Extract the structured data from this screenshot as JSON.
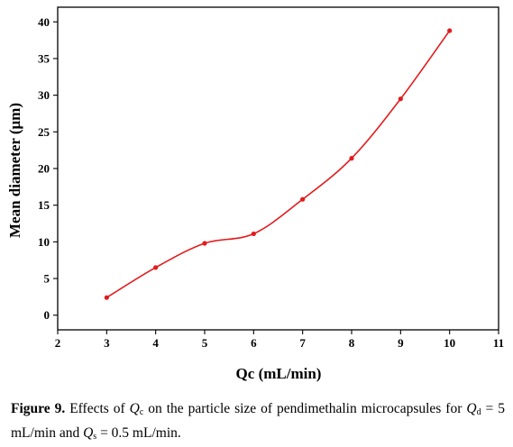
{
  "chart_data": {
    "type": "line",
    "xlabel": "Qc (mL/min)",
    "ylabel": "Mean diameter (μm)",
    "xlim": [
      2,
      11
    ],
    "ylim": [
      -2,
      42
    ],
    "xticks": [
      2,
      3,
      4,
      5,
      6,
      7,
      8,
      9,
      10,
      11
    ],
    "yticks": [
      0,
      5,
      10,
      15,
      20,
      25,
      30,
      35,
      40
    ],
    "grid": false,
    "series": [
      {
        "color": "#e31a1c",
        "x": [
          3,
          4,
          5,
          6,
          7,
          8,
          9,
          10
        ],
        "y": [
          2.4,
          6.5,
          9.8,
          11.1,
          15.8,
          21.4,
          29.5,
          38.8
        ]
      }
    ]
  },
  "caption": {
    "label": "Figure 9.",
    "text1": "Effects of ",
    "qc_letter": "Q",
    "qc_sub": "c",
    "text2": " on the particle size of pendimethalin microcapsules for ",
    "qd_letter": "Q",
    "qd_sub": "d",
    "text3": " = 5 mL/min and ",
    "qs_letter": "Q",
    "qs_sub": "s",
    "text4": " = 0.5 mL/min."
  }
}
